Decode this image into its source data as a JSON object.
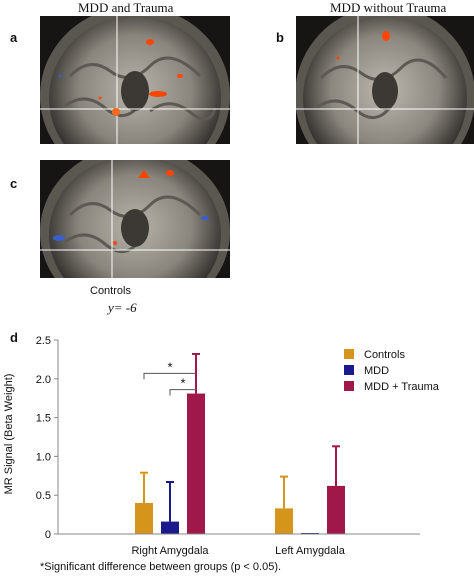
{
  "panels": {
    "a": {
      "letter": "a",
      "title": "MDD and Trauma"
    },
    "b": {
      "letter": "b",
      "title": "MDD without Trauma"
    },
    "c": {
      "letter": "c",
      "title": "Controls",
      "coord": "y= -6"
    }
  },
  "chart_letter": "d",
  "footnote": "*Significant difference between groups (p < 0.05).",
  "colors": {
    "controls": "#d4951a",
    "mdd": "#1a1a8c",
    "mdd_trauma": "#a0184a",
    "activation": "#ff4500",
    "deactivation": "#3a5fcd"
  },
  "chart_data": {
    "type": "bar",
    "categories": [
      "Right Amygdala",
      "Left Amygdala"
    ],
    "series": [
      {
        "name": "Controls",
        "values": [
          0.4,
          0.33
        ],
        "error": [
          0.39,
          0.41
        ]
      },
      {
        "name": "MDD",
        "values": [
          0.16,
          0.01
        ],
        "error": [
          0.51,
          0.0
        ]
      },
      {
        "name": "MDD + Trauma",
        "values": [
          1.81,
          0.62
        ],
        "error": [
          0.51,
          0.51
        ]
      }
    ],
    "ylabel": "MR Signal (Beta Weight)",
    "ylim": [
      0,
      2.5
    ],
    "yticks": [
      "0",
      "0.5",
      "1.0",
      "1.5",
      "2.0",
      "2.5"
    ],
    "legend_position": "top-right",
    "significance": [
      {
        "label": "*",
        "between": [
          "Controls",
          "MDD + Trauma"
        ],
        "category": "Right Amygdala"
      },
      {
        "label": "*",
        "between": [
          "MDD",
          "MDD + Trauma"
        ],
        "category": "Right Amygdala"
      }
    ]
  }
}
